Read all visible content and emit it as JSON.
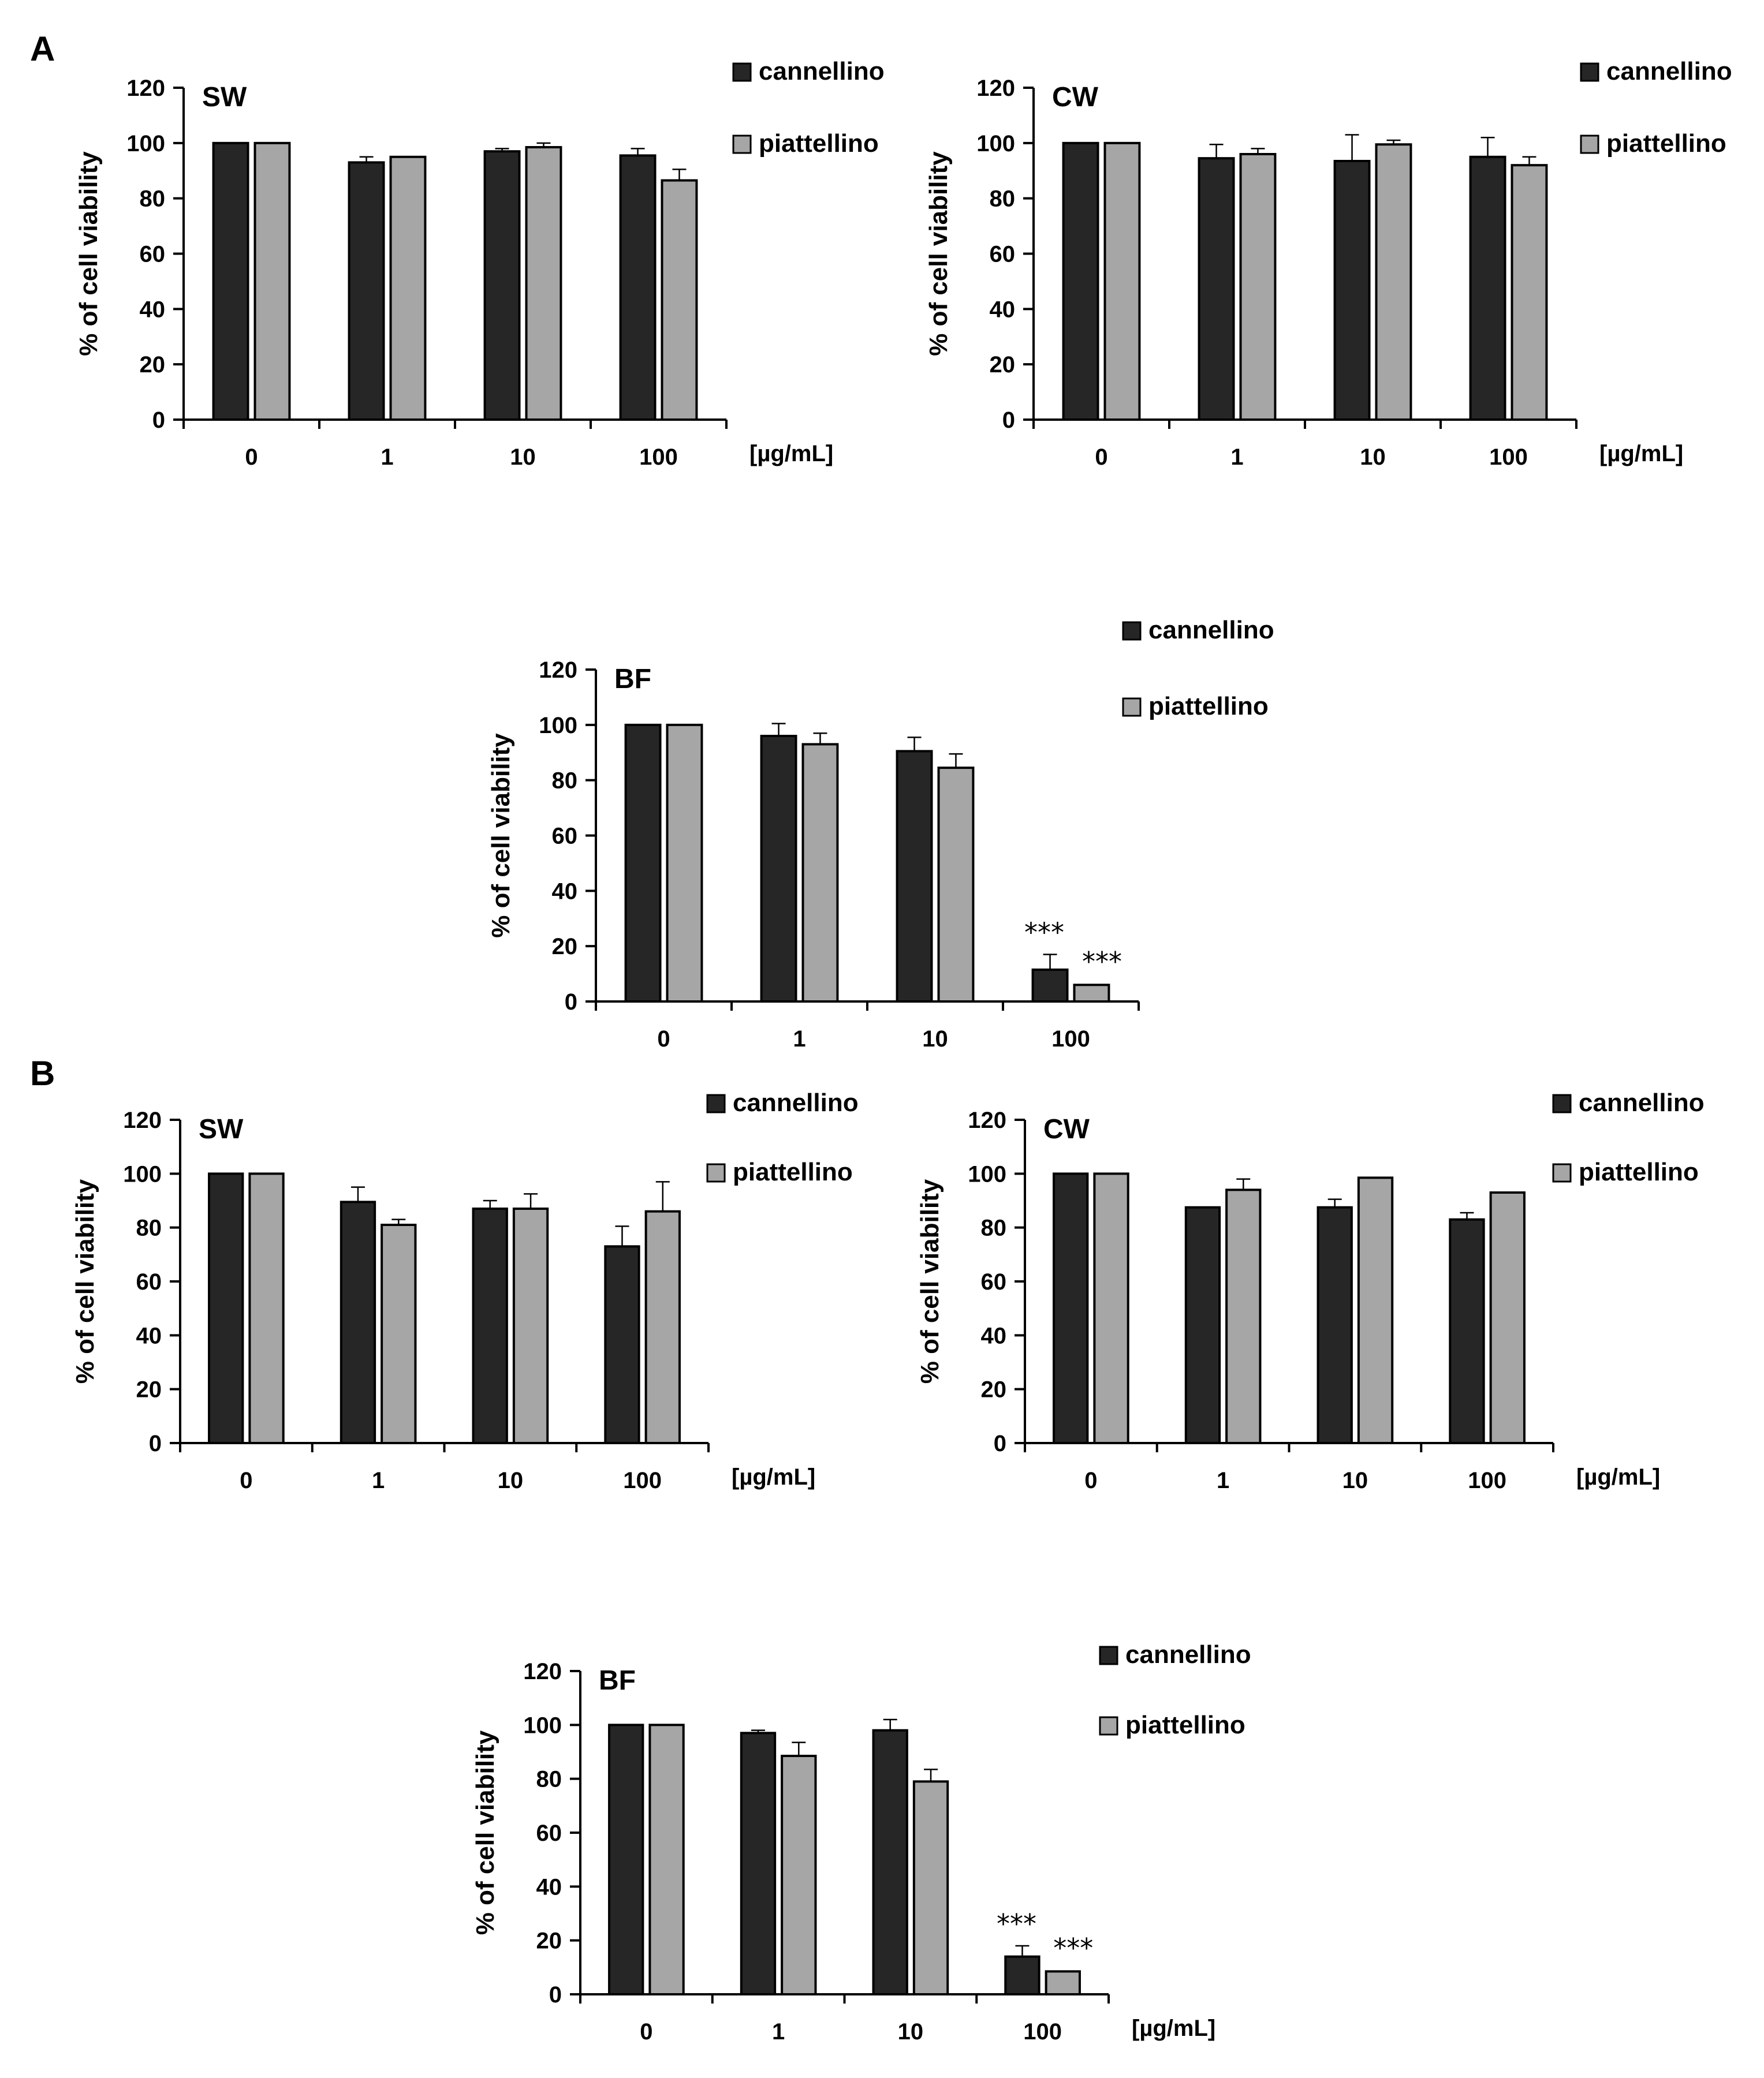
{
  "panels": {
    "a": "A",
    "b": "B"
  },
  "colors": {
    "cannellino": "#262626",
    "piattellino": "#a6a6a6"
  },
  "chart_data": [
    {
      "type": "bar",
      "panel": "A",
      "title": "SW",
      "categories": [
        "0",
        "1",
        "10",
        "100"
      ],
      "xunit": "[µg/mL]",
      "ylabel": "% of cell viability",
      "ylim": [
        0,
        120
      ],
      "yticks": [
        "0",
        "20",
        "40",
        "60",
        "80",
        "100",
        "120"
      ],
      "series": [
        {
          "name": "cannellino",
          "values": [
            100,
            93,
            97,
            95.5
          ],
          "errors": [
            0.5,
            2,
            1,
            2.5
          ]
        },
        {
          "name": "piattellino",
          "values": [
            100,
            95,
            98.5,
            86.5
          ],
          "errors": [
            0.5,
            0.5,
            1.5,
            4
          ]
        }
      ],
      "annotations": [
        "",
        "",
        "",
        ""
      ]
    },
    {
      "type": "bar",
      "panel": "A",
      "title": "CW",
      "categories": [
        "0",
        "1",
        "10",
        "100"
      ],
      "xunit": "[µg/mL]",
      "ylabel": "% of cell viability",
      "ylim": [
        0,
        120
      ],
      "yticks": [
        "0",
        "20",
        "40",
        "60",
        "80",
        "100",
        "120"
      ],
      "series": [
        {
          "name": "cannellino",
          "values": [
            100,
            94.5,
            93.5,
            95
          ],
          "errors": [
            0.5,
            5,
            9.5,
            7
          ]
        },
        {
          "name": "piattellino",
          "values": [
            100,
            96,
            99.5,
            92
          ],
          "errors": [
            0.5,
            2,
            1.5,
            3
          ]
        }
      ],
      "annotations": [
        "",
        "",
        "",
        ""
      ]
    },
    {
      "type": "bar",
      "panel": "A",
      "title": "BF",
      "categories": [
        "0",
        "1",
        "10",
        "100"
      ],
      "xunit": "",
      "ylabel": "% of cell viability",
      "ylim": [
        0,
        120
      ],
      "yticks": [
        "0",
        "20",
        "40",
        "60",
        "80",
        "100",
        "120"
      ],
      "series": [
        {
          "name": "cannellino",
          "values": [
            100,
            96,
            90.5,
            11.5
          ],
          "errors": [
            0.5,
            4.5,
            5,
            5.5
          ],
          "sig": [
            "",
            "",
            "",
            "***"
          ]
        },
        {
          "name": "piattellino",
          "values": [
            100,
            93,
            84.5,
            6
          ],
          "errors": [
            0.5,
            4,
            5,
            0.5
          ],
          "sig": [
            "",
            "",
            "",
            "***"
          ]
        }
      ]
    },
    {
      "type": "bar",
      "panel": "B",
      "title": "SW",
      "categories": [
        "0",
        "1",
        "10",
        "100"
      ],
      "xunit": "[µg/mL]",
      "ylabel": "% of cell viability",
      "ylim": [
        0,
        120
      ],
      "yticks": [
        "0",
        "20",
        "40",
        "60",
        "80",
        "100",
        "120"
      ],
      "series": [
        {
          "name": "cannellino",
          "values": [
            100,
            89.5,
            87,
            73
          ],
          "errors": [
            0.5,
            5.5,
            3,
            7.5
          ]
        },
        {
          "name": "piattellino",
          "values": [
            100,
            81,
            87,
            86
          ],
          "errors": [
            0.5,
            2,
            5.5,
            11
          ]
        }
      ]
    },
    {
      "type": "bar",
      "panel": "B",
      "title": "CW",
      "categories": [
        "0",
        "1",
        "10",
        "100"
      ],
      "xunit": "[µg/mL]",
      "ylabel": "% of cell viability",
      "ylim": [
        0,
        120
      ],
      "yticks": [
        "0",
        "20",
        "40",
        "60",
        "80",
        "100",
        "120"
      ],
      "series": [
        {
          "name": "cannellino",
          "values": [
            100,
            87.5,
            87.5,
            83
          ],
          "errors": [
            0.5,
            0.5,
            3,
            2.5
          ]
        },
        {
          "name": "piattellino",
          "values": [
            100,
            94,
            98.5,
            93
          ],
          "errors": [
            0.5,
            4,
            0.5,
            0.5
          ]
        }
      ]
    },
    {
      "type": "bar",
      "panel": "B",
      "title": "BF",
      "categories": [
        "0",
        "1",
        "10",
        "100"
      ],
      "xunit": "[µg/mL]",
      "ylabel": "% of cell viability",
      "ylim": [
        0,
        120
      ],
      "yticks": [
        "0",
        "20",
        "40",
        "60",
        "80",
        "100",
        "120"
      ],
      "series": [
        {
          "name": "cannellino",
          "values": [
            100,
            97,
            98,
            14
          ],
          "errors": [
            0.5,
            1,
            4,
            4
          ],
          "sig": [
            "",
            "",
            "",
            "***"
          ]
        },
        {
          "name": "piattellino",
          "values": [
            100,
            88.5,
            79,
            8.5
          ],
          "errors": [
            0.5,
            5,
            4.5,
            0.5
          ],
          "sig": [
            "",
            "",
            "",
            "***"
          ]
        }
      ]
    }
  ]
}
